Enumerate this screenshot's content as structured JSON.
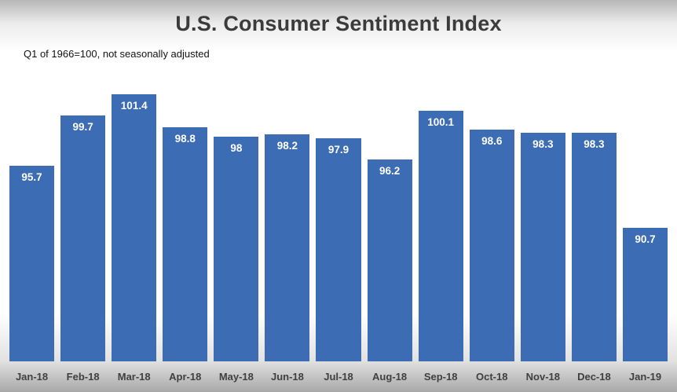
{
  "chart_data": {
    "type": "bar",
    "title": "U.S. Consumer Sentiment Index",
    "subtitle": "Q1 of 1966=100, not seasonally adjusted",
    "categories": [
      "Jan-18",
      "Feb-18",
      "Mar-18",
      "Apr-18",
      "May-18",
      "Jun-18",
      "Jul-18",
      "Aug-18",
      "Sep-18",
      "Oct-18",
      "Nov-18",
      "Dec-18",
      "Jan-19"
    ],
    "values": [
      95.7,
      99.7,
      101.4,
      98.8,
      98,
      98.2,
      97.9,
      96.2,
      100.1,
      98.6,
      98.3,
      98.3,
      90.7
    ],
    "ylim": [
      80,
      102.8
    ],
    "grid": false,
    "legend_position": "none",
    "colors": {
      "bar": "#3b6cb4",
      "value_label": "#ffffff",
      "axis_label": "#404040",
      "title": "#3b3b3b"
    }
  }
}
